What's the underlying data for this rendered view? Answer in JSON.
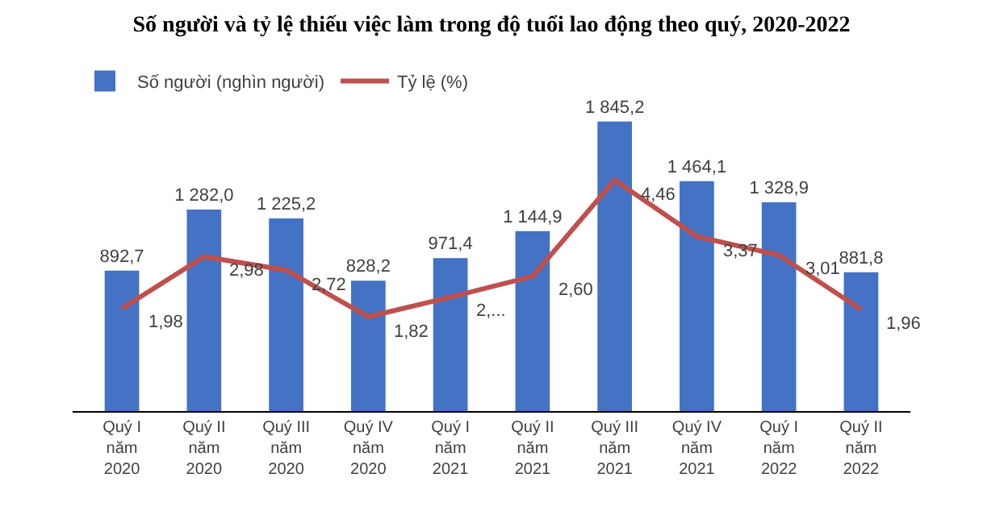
{
  "chart_data": {
    "type": "bar",
    "title": "Số người và tỷ lệ thiếu việc làm trong độ tuổi lao động theo quý, 2020-2022",
    "categories": [
      "Quý I\nnăm\n2020",
      "Quý II\nnăm\n2020",
      "Quý III\nnăm\n2020",
      "Quý IV\nnăm\n2020",
      "Quý I\nnăm\n2021",
      "Quý II\nnăm\n2021",
      "Quý III\nnăm\n2021",
      "Quý IV\nnăm\n2021",
      "Quý I\nnăm\n2022",
      "Quý II\nnăm\n2022"
    ],
    "series": [
      {
        "name": "Số người (nghìn người)",
        "color": "#4472c4",
        "values": [
          892.7,
          1282.0,
          1225.2,
          828.2,
          971.4,
          1144.9,
          1845.2,
          1464.1,
          1328.9,
          881.8
        ],
        "value_labels": [
          "892,7",
          "1 282,0",
          "1 225,2",
          "828,2",
          "971,4",
          "1 144,9",
          "1 845,2",
          "1 464,1",
          "1 328,9",
          "881,8"
        ]
      },
      {
        "name": "Tỷ lệ (%)",
        "type": "line",
        "axis": "y2",
        "color": "#c0504d",
        "values": [
          1.98,
          2.98,
          2.72,
          1.82,
          2.2,
          2.6,
          4.46,
          3.37,
          3.01,
          1.96
        ],
        "value_labels": [
          "1,98",
          "2,98",
          "2,72",
          "1,82",
          "2,...",
          "2,60",
          "4,46",
          "3,37",
          "3,01",
          "1,96"
        ]
      }
    ],
    "legend": "top left",
    "marker": "none",
    "line_style": "solid"
  }
}
